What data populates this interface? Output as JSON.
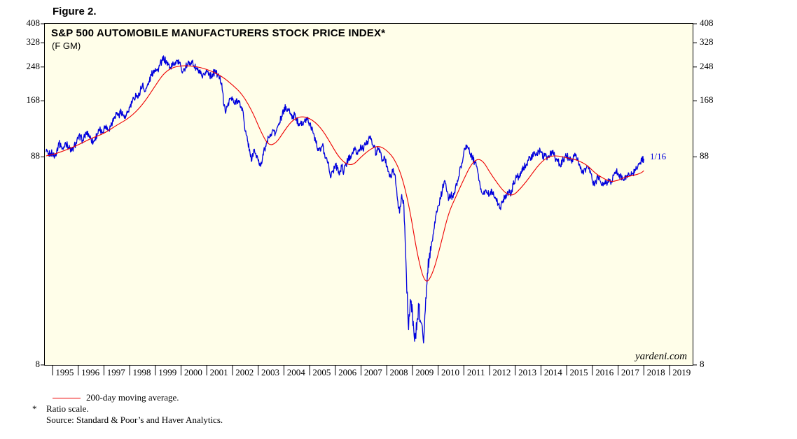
{
  "figure_label": "Figure 2.",
  "chart": {
    "watermark": "yardeni.com",
    "colors": {
      "price_line": "#0000dd",
      "ma_line": "#ee0000",
      "plot_background": "#fffee9",
      "border": "#000000"
    }
  },
  "chart_data": {
    "type": "line",
    "title": "S&P 500 AUTOMOBILE MANUFACTURERS STOCK PRICE INDEX*",
    "subtitle": "(F GM)",
    "scale": "log (ratio scale)",
    "grid": false,
    "ylim": [
      8,
      408
    ],
    "yticks": [
      8,
      88,
      168,
      248,
      328,
      408
    ],
    "xlim": [
      1994.7,
      2019.9
    ],
    "xticks": [
      1995,
      1996,
      1997,
      1998,
      1999,
      2000,
      2001,
      2002,
      2003,
      2004,
      2005,
      2006,
      2007,
      2008,
      2009,
      2010,
      2011,
      2012,
      2013,
      2014,
      2015,
      2016,
      2017,
      2018,
      2019
    ],
    "series": [
      {
        "name": "S&P 500 Automobile Manufacturers Stock Price Index (F, GM)",
        "style": "price",
        "x_start": 1994.75,
        "x_step": 0.08333333,
        "values": [
          93,
          90,
          92,
          92,
          88,
          95,
          103,
          99,
          96,
          104,
          100,
          97,
          94,
          99,
          104,
          108,
          112,
          106,
          111,
          118,
          113,
          108,
          104,
          110,
          115,
          120,
          117,
          122,
          127,
          120,
          125,
          133,
          140,
          147,
          141,
          150,
          143,
          137,
          146,
          155,
          163,
          172,
          181,
          175,
          190,
          204,
          186,
          196,
          210,
          224,
          236,
          244,
          238,
          252,
          266,
          274,
          263,
          255,
          247,
          254,
          260,
          268,
          257,
          248,
          236,
          246,
          255,
          262,
          266,
          251,
          244,
          238,
          229,
          218,
          227,
          239,
          231,
          222,
          230,
          236,
          226,
          217,
          206,
          158,
          150,
          164,
          173,
          170,
          161,
          172,
          165,
          157,
          147,
          118,
          106,
          96,
          84,
          96,
          89,
          84,
          80,
          87,
          96,
          104,
          110,
          114,
          120,
          115,
          124,
          131,
          141,
          150,
          157,
          151,
          144,
          137,
          143,
          136,
          129,
          133,
          127,
          135,
          139,
          129,
          124,
          115,
          103,
          97,
          94,
          101,
          91,
          87,
          78,
          70,
          75,
          81,
          77,
          72,
          79,
          74,
          81,
          85,
          89,
          93,
          96,
          91,
          95,
          99,
          96,
          101,
          105,
          109,
          106,
          99,
          91,
          96,
          93,
          84,
          88,
          79,
          74,
          69,
          77,
          71,
          54,
          46,
          57,
          50,
          26,
          13,
          17,
          15,
          10.5,
          12,
          16,
          13,
          10.8,
          15,
          23,
          29,
          33,
          38,
          45,
          50,
          54,
          61,
          67,
          59,
          54,
          57,
          55,
          61,
          67,
          74,
          82,
          93,
          101,
          97,
          91,
          87,
          83,
          79,
          67,
          61,
          57,
          60,
          58,
          57,
          60,
          56,
          54,
          51,
          49,
          52,
          56,
          57,
          59,
          57,
          64,
          68,
          71,
          69,
          74,
          78,
          80,
          85,
          87,
          88,
          92,
          90,
          94,
          93,
          88,
          91,
          87,
          89,
          93,
          91,
          86,
          84,
          79,
          84,
          87,
          89,
          87,
          84,
          86,
          89,
          85,
          81,
          73,
          75,
          77,
          79,
          75,
          66,
          63,
          68,
          70,
          65,
          63,
          67,
          65,
          68,
          66,
          71,
          75,
          73,
          71,
          69,
          68,
          70,
          73,
          71,
          73,
          75,
          77,
          81,
          84,
          86
        ]
      },
      {
        "name": "200-day moving average",
        "style": "ma",
        "points": [
          [
            1994.75,
            89
          ],
          [
            1995.0,
            90
          ],
          [
            1995.5,
            95
          ],
          [
            1996.0,
            101
          ],
          [
            1996.5,
            109
          ],
          [
            1997.0,
            115
          ],
          [
            1997.5,
            127
          ],
          [
            1998.0,
            138
          ],
          [
            1998.5,
            160
          ],
          [
            1999.0,
            200
          ],
          [
            1999.3,
            228
          ],
          [
            1999.6,
            245
          ],
          [
            2000.0,
            252
          ],
          [
            2000.4,
            251
          ],
          [
            2000.8,
            246
          ],
          [
            2001.2,
            236
          ],
          [
            2001.6,
            222
          ],
          [
            2002.0,
            202
          ],
          [
            2002.4,
            180
          ],
          [
            2002.8,
            146
          ],
          [
            2003.1,
            118
          ],
          [
            2003.4,
            100
          ],
          [
            2003.7,
            103
          ],
          [
            2004.0,
            118
          ],
          [
            2004.3,
            133
          ],
          [
            2004.6,
            140
          ],
          [
            2004.9,
            139
          ],
          [
            2005.2,
            132
          ],
          [
            2005.5,
            120
          ],
          [
            2005.8,
            104
          ],
          [
            2006.1,
            89
          ],
          [
            2006.4,
            81
          ],
          [
            2006.7,
            80
          ],
          [
            2007.0,
            88
          ],
          [
            2007.4,
            97
          ],
          [
            2007.7,
            100
          ],
          [
            2008.0,
            95
          ],
          [
            2008.3,
            86
          ],
          [
            2008.6,
            70
          ],
          [
            2008.9,
            48
          ],
          [
            2009.2,
            28
          ],
          [
            2009.5,
            20
          ],
          [
            2009.8,
            23
          ],
          [
            2010.1,
            32
          ],
          [
            2010.4,
            46
          ],
          [
            2010.7,
            56
          ],
          [
            2011.0,
            68
          ],
          [
            2011.2,
            77
          ],
          [
            2011.4,
            84
          ],
          [
            2011.6,
            86
          ],
          [
            2011.8,
            82
          ],
          [
            2012.0,
            74
          ],
          [
            2012.3,
            65
          ],
          [
            2012.6,
            58
          ],
          [
            2012.9,
            56
          ],
          [
            2013.2,
            61
          ],
          [
            2013.5,
            68
          ],
          [
            2013.8,
            77
          ],
          [
            2014.1,
            85
          ],
          [
            2014.4,
            89
          ],
          [
            2014.7,
            89
          ],
          [
            2015.0,
            87
          ],
          [
            2015.4,
            85
          ],
          [
            2015.8,
            80
          ],
          [
            2016.1,
            73
          ],
          [
            2016.4,
            69
          ],
          [
            2016.7,
            66
          ],
          [
            2017.0,
            67
          ],
          [
            2017.3,
            70
          ],
          [
            2017.6,
            71
          ],
          [
            2017.9,
            73
          ],
          [
            2018.0,
            75
          ]
        ]
      }
    ],
    "annotations": [
      {
        "text": "1/16",
        "x": 2018.15,
        "y": 87
      }
    ]
  },
  "legend": {
    "ma_label": "200-day moving average."
  },
  "footnotes": {
    "marker": "*",
    "ratio_scale": "Ratio scale.",
    "source": "Source: Standard & Poor’s and Haver Analytics."
  }
}
